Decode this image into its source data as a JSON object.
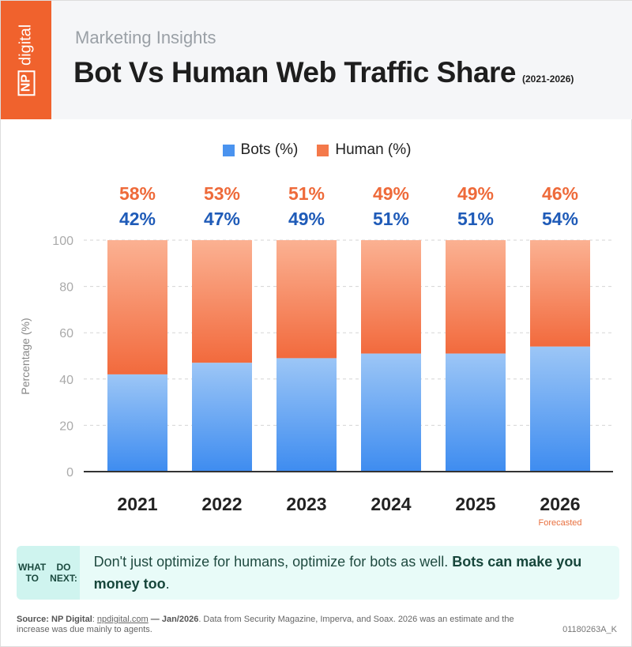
{
  "header": {
    "logo": "NP digital",
    "subtitle": "Marketing Insights",
    "title": "Bot Vs Human Web Traffic Share",
    "range": "(2021-2026)"
  },
  "colors": {
    "bots": "#3f8ef0",
    "human": "#f26a3d",
    "bots_label": "#1f5bb8",
    "human_label": "#ee6a3a",
    "brand": "#f0622d"
  },
  "chart_data": {
    "type": "bar",
    "stacked": true,
    "categories": [
      "2021",
      "2022",
      "2023",
      "2024",
      "2025",
      "2026"
    ],
    "series": [
      {
        "name": "Bots (%)",
        "values": [
          42,
          47,
          49,
          51,
          51,
          54
        ]
      },
      {
        "name": "Human (%)",
        "values": [
          58,
          53,
          51,
          49,
          49,
          46
        ]
      }
    ],
    "data_labels": {
      "bots": [
        "42%",
        "47%",
        "49%",
        "51%",
        "51%",
        "54%"
      ],
      "human": [
        "58%",
        "53%",
        "51%",
        "49%",
        "49%",
        "46%"
      ]
    },
    "ylabel": "Percentage (%)",
    "ylim": [
      0,
      100
    ],
    "yticks": [
      "0",
      "20",
      "40",
      "60",
      "80",
      "100"
    ],
    "grid": true,
    "legend": "top-center",
    "annotations": [
      {
        "category": "2026",
        "text": "Forecasted"
      }
    ]
  },
  "legend": {
    "bots": "Bots (%)",
    "human": "Human (%)"
  },
  "tip": {
    "label_line1": "WHAT TO",
    "label_line2": "DO NEXT:",
    "text": "Don't just optimize for humans, optimize for bots as well. ",
    "bold": "Bots can make you money too",
    "end": "."
  },
  "footer": {
    "source_bold": "Source: NP Digital",
    "colon": ": ",
    "link": "npdigital.com",
    "date": " — Jan/2026",
    "rest": ". Data from Security Magazine, Imperva, and Soax. 2026 was an estimate and the increase was due mainly to agents.",
    "code": "01180263A_K"
  }
}
